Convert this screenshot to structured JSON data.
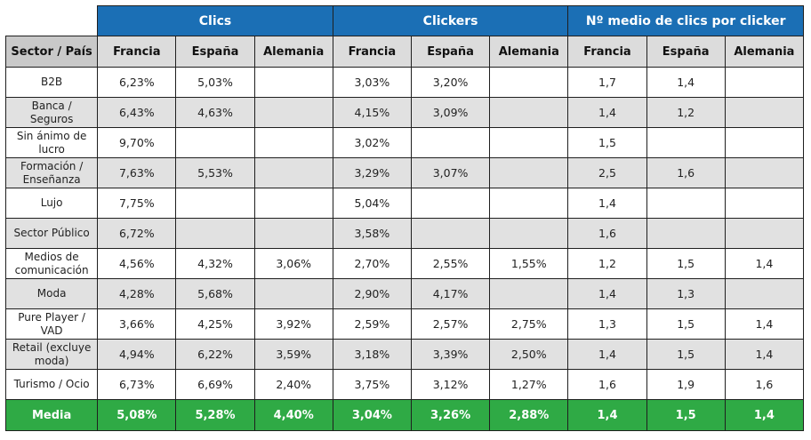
{
  "groups": [
    "Clics",
    "Clickers",
    "Nº medio de clics por clicker"
  ],
  "columns": [
    "Sector / País",
    "Francia",
    "España",
    "Alemania",
    "Francia",
    "España",
    "Alemania",
    "Francia",
    "España",
    "Alemania"
  ],
  "rows": [
    {
      "sector": "B2B",
      "values": [
        "6,23%",
        "5,03%",
        "",
        "3,03%",
        "3,20%",
        "",
        "1,7",
        "1,4",
        ""
      ]
    },
    {
      "sector": "Banca / Seguros",
      "values": [
        "6,43%",
        "4,63%",
        "",
        "4,15%",
        "3,09%",
        "",
        "1,4",
        "1,2",
        ""
      ]
    },
    {
      "sector": "Sin ánimo de lucro",
      "values": [
        "9,70%",
        "",
        "",
        "3,02%",
        "",
        "",
        "1,5",
        "",
        ""
      ]
    },
    {
      "sector": "Formación / Enseñanza",
      "values": [
        "7,63%",
        "5,53%",
        "",
        "3,29%",
        "3,07%",
        "",
        "2,5",
        "1,6",
        ""
      ]
    },
    {
      "sector": "Lujo",
      "values": [
        "7,75%",
        "",
        "",
        "5,04%",
        "",
        "",
        "1,4",
        "",
        ""
      ]
    },
    {
      "sector": "Sector Público",
      "values": [
        "6,72%",
        "",
        "",
        "3,58%",
        "",
        "",
        "1,6",
        "",
        ""
      ]
    },
    {
      "sector": "Medios de comunicación",
      "values": [
        "4,56%",
        "4,32%",
        "3,06%",
        "2,70%",
        "2,55%",
        "1,55%",
        "1,2",
        "1,5",
        "1,4"
      ]
    },
    {
      "sector": "Moda",
      "values": [
        "4,28%",
        "5,68%",
        "",
        "2,90%",
        "4,17%",
        "",
        "1,4",
        "1,3",
        ""
      ]
    },
    {
      "sector": "Pure Player / VAD",
      "values": [
        "3,66%",
        "4,25%",
        "3,92%",
        "2,59%",
        "2,57%",
        "2,75%",
        "1,3",
        "1,5",
        "1,4"
      ]
    },
    {
      "sector": "Retail (excluye moda)",
      "values": [
        "4,94%",
        "6,22%",
        "3,59%",
        "3,18%",
        "3,39%",
        "2,50%",
        "1,4",
        "1,5",
        "1,4"
      ]
    },
    {
      "sector": "Turismo / Ocio",
      "values": [
        "6,73%",
        "6,69%",
        "2,40%",
        "3,75%",
        "3,12%",
        "1,27%",
        "1,6",
        "1,9",
        "1,6"
      ]
    }
  ],
  "average": {
    "label": "Media",
    "values": [
      "5,08%",
      "5,28%",
      "4,40%",
      "3,04%",
      "3,26%",
      "2,88%",
      "1,4",
      "1,5",
      "1,4"
    ]
  },
  "colors": {
    "header_blue": "#1b6fb5",
    "average_green": "#2faa45",
    "alt_row_gray": "#e1e1e1"
  }
}
